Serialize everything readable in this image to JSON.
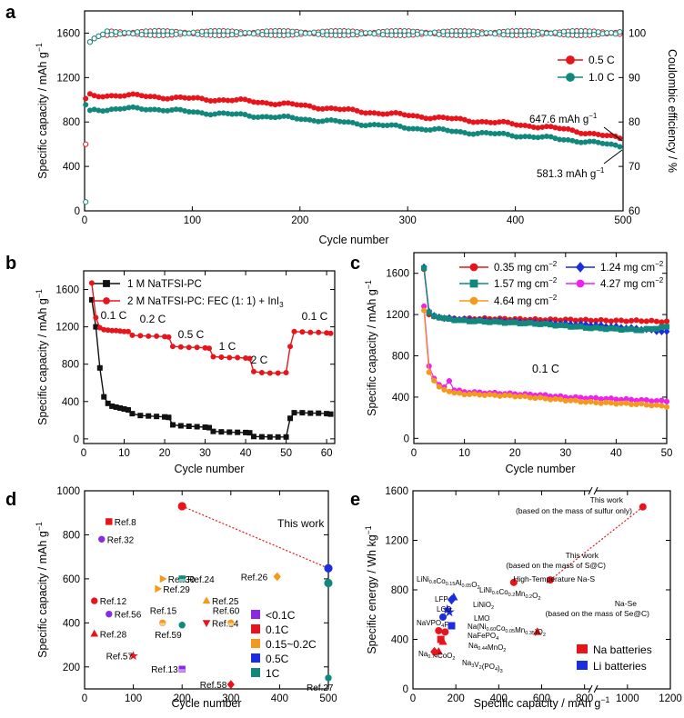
{
  "colors": {
    "red": "#e8141b",
    "teal": "#12887d",
    "blue": "#1c2ce0",
    "magenta": "#ee22ee",
    "orange": "#f39a1d",
    "purple": "#8a2be2",
    "black": "#111111"
  },
  "chart_data": [
    {
      "panel": "a",
      "type": "line",
      "xlabel": "Cycle number",
      "ylabel": "Specific capacity / mAh g",
      "ylabel_sup": "−1",
      "y2label": "Coulombic efficiency / %",
      "xlim": [
        0,
        500
      ],
      "ylim": [
        0,
        1800
      ],
      "y2lim": [
        60,
        105
      ],
      "xticks": [
        0,
        100,
        200,
        300,
        400,
        500
      ],
      "yticks": [
        0,
        400,
        800,
        1200,
        1600
      ],
      "y2ticks": [
        60,
        70,
        80,
        90,
        100
      ],
      "series": [
        {
          "name": "0.5 C",
          "color": "red",
          "capacity": {
            "x": [
              1,
              2,
              3,
              5,
              10,
              20,
              40,
              60,
              100,
              150,
              200,
              250,
              300,
              350,
              400,
              450,
              480,
              500
            ],
            "y": [
              1000,
              650,
              1050,
              1040,
              1030,
              1040,
              1040,
              1030,
              1010,
              990,
              950,
              900,
              860,
              820,
              780,
              730,
              680,
              648
            ]
          },
          "efficiency": {
            "x": [
              1,
              2,
              3,
              5,
              10,
              20,
              50,
              100,
              200,
              300,
              400,
              500
            ],
            "y": [
              75,
              95,
              97,
              98,
              99,
              100,
              100,
              100,
              100,
              100,
              100,
              100
            ]
          }
        },
        {
          "name": "1.0 C",
          "color": "teal",
          "capacity": {
            "x": [
              1,
              3,
              5,
              10,
              20,
              40,
              60,
              100,
              150,
              200,
              250,
              300,
              350,
              400,
              450,
              500
            ],
            "y": [
              950,
              860,
              900,
              920,
              910,
              920,
              920,
              890,
              860,
              830,
              790,
              750,
              710,
              680,
              640,
              581
            ]
          },
          "efficiency": {
            "x": [
              1,
              3,
              5,
              10,
              20,
              50,
              100,
              200,
              300,
              400,
              500
            ],
            "y": [
              62,
              96,
              98,
              99,
              100,
              100,
              100,
              100,
              100,
              100,
              100
            ]
          }
        }
      ],
      "annotations": [
        {
          "text": "647.6 mAh g",
          "sup": "−1"
        },
        {
          "text": "581.3 mAh g",
          "sup": "−1"
        }
      ],
      "legend_position": "right"
    },
    {
      "panel": "b",
      "type": "line",
      "xlabel": "Cycle number",
      "ylabel": "Specific capacity / mAh g",
      "ylabel_sup": "−1",
      "xlim": [
        0,
        62
      ],
      "ylim": [
        -50,
        1800
      ],
      "xticks": [
        0,
        10,
        20,
        30,
        40,
        50,
        60
      ],
      "yticks": [
        0,
        400,
        800,
        1200,
        1600
      ],
      "series": [
        {
          "name": "1 M NaTFSI-PC",
          "color": "black",
          "x": [
            2,
            3,
            4,
            5,
            6,
            7,
            8,
            9,
            10,
            11,
            12,
            14,
            16,
            18,
            20,
            21,
            22,
            24,
            26,
            28,
            30,
            31,
            32,
            34,
            36,
            38,
            40,
            41,
            42,
            44,
            46,
            48,
            50,
            51,
            52,
            54,
            56,
            58,
            60,
            61
          ],
          "y": [
            1490,
            1200,
            760,
            450,
            380,
            350,
            340,
            330,
            320,
            310,
            270,
            250,
            245,
            240,
            235,
            230,
            150,
            140,
            135,
            130,
            125,
            120,
            80,
            75,
            72,
            70,
            68,
            65,
            25,
            22,
            20,
            20,
            20,
            220,
            280,
            280,
            275,
            275,
            270,
            265
          ]
        },
        {
          "name": "2 M NaTFSI-PC: FEC (1: 1) + InI",
          "sub": "3",
          "color": "red",
          "x": [
            2,
            3,
            4,
            5,
            6,
            7,
            8,
            9,
            10,
            11,
            12,
            14,
            16,
            18,
            20,
            21,
            22,
            24,
            26,
            28,
            30,
            31,
            32,
            34,
            36,
            38,
            40,
            41,
            42,
            44,
            46,
            48,
            50,
            51,
            52,
            54,
            56,
            58,
            60,
            61
          ],
          "y": [
            1670,
            1300,
            1190,
            1170,
            1165,
            1160,
            1160,
            1155,
            1150,
            1150,
            1110,
            1105,
            1100,
            1100,
            1095,
            1090,
            990,
            985,
            980,
            980,
            975,
            970,
            880,
            875,
            870,
            870,
            865,
            860,
            720,
            710,
            705,
            705,
            710,
            990,
            1150,
            1145,
            1140,
            1140,
            1135,
            1130
          ]
        }
      ],
      "annotations": [
        "0.1 C",
        "0.2 C",
        "0.5 C",
        "1 C",
        "2 C",
        "0.1 C"
      ],
      "legend_position": "top-left"
    },
    {
      "panel": "c",
      "type": "line",
      "xlabel": "Cycle number",
      "ylabel": "Specific capacity / mAh g",
      "ylabel_sup": "−1",
      "xlim": [
        0,
        50
      ],
      "ylim": [
        -50,
        1800
      ],
      "xticks": [
        0,
        10,
        20,
        30,
        40,
        50
      ],
      "yticks": [
        0,
        400,
        800,
        1200,
        1600
      ],
      "annotations": [
        "0.1 C"
      ],
      "series": [
        {
          "name": "0.35 mg cm",
          "sup": "−2",
          "color": "red",
          "marker": "circle",
          "x": [
            2,
            3,
            4,
            5,
            6,
            8,
            10,
            15,
            20,
            25,
            30,
            35,
            40,
            45,
            50
          ],
          "y": [
            1640,
            1200,
            1180,
            1170,
            1165,
            1160,
            1160,
            1160,
            1155,
            1150,
            1150,
            1145,
            1140,
            1140,
            1130
          ]
        },
        {
          "name": "1.24 mg cm",
          "sup": "−2",
          "color": "blue",
          "marker": "diamond",
          "x": [
            2,
            3,
            4,
            5,
            6,
            8,
            10,
            15,
            20,
            25,
            30,
            35,
            40,
            45,
            50
          ],
          "y": [
            1660,
            1230,
            1190,
            1175,
            1165,
            1160,
            1150,
            1140,
            1130,
            1120,
            1110,
            1100,
            1080,
            1060,
            1030
          ]
        },
        {
          "name": "1.57 mg cm",
          "sup": "−2",
          "color": "teal",
          "marker": "square",
          "x": [
            2,
            3,
            4,
            5,
            6,
            8,
            10,
            15,
            20,
            25,
            30,
            35,
            40,
            45,
            50
          ],
          "y": [
            1650,
            1220,
            1185,
            1170,
            1160,
            1150,
            1140,
            1130,
            1120,
            1110,
            1090,
            1070,
            1060,
            1050,
            1080
          ]
        },
        {
          "name": "4.27 mg cm",
          "sup": "−2",
          "color": "magenta",
          "marker": "circle",
          "x": [
            2,
            3,
            4,
            5,
            6,
            7,
            8,
            10,
            15,
            20,
            25,
            30,
            35,
            40,
            45,
            50
          ],
          "y": [
            1280,
            700,
            580,
            520,
            490,
            560,
            470,
            450,
            440,
            430,
            420,
            400,
            390,
            380,
            370,
            360
          ]
        },
        {
          "name": "4.64 mg cm",
          "sup": "−2",
          "color": "orange",
          "marker": "circle",
          "x": [
            2,
            3,
            4,
            5,
            6,
            7,
            8,
            10,
            15,
            20,
            25,
            30,
            35,
            40,
            45,
            50
          ],
          "y": [
            1240,
            640,
            560,
            500,
            470,
            460,
            440,
            430,
            420,
            410,
            390,
            370,
            350,
            340,
            330,
            310
          ]
        }
      ],
      "legend_position": "top"
    },
    {
      "panel": "d",
      "type": "scatter",
      "xlabel": "Cycle number",
      "ylabel": "Specific capacity / mAh g",
      "ylabel_sup": "−1",
      "xlim": [
        0,
        500
      ],
      "ylim": [
        100,
        1000
      ],
      "xticks": [
        0,
        100,
        200,
        300,
        400,
        500
      ],
      "yticks": [
        200,
        400,
        600,
        800,
        1000
      ],
      "title_annotation": "This work",
      "this_work": {
        "points": [
          {
            "x": 200,
            "y": 930,
            "color": "red"
          },
          {
            "x": 500,
            "y": 648,
            "color": "blue"
          },
          {
            "x": 500,
            "y": 581,
            "color": "teal"
          }
        ]
      },
      "points": [
        {
          "label": "Ref.8",
          "x": 50,
          "y": 860,
          "marker": "square",
          "color": "red"
        },
        {
          "label": "Ref.32",
          "x": 35,
          "y": 780,
          "marker": "circle",
          "color": "purple"
        },
        {
          "label": "Ref.30",
          "x": 160,
          "y": 600,
          "marker": "triangle-r",
          "color": "orange"
        },
        {
          "label": "Ref.29",
          "x": 150,
          "y": 555,
          "marker": "triangle-r",
          "color": "orange"
        },
        {
          "label": "Ref.24",
          "x": 200,
          "y": 600,
          "marker": "square-half",
          "color": "teal"
        },
        {
          "label": "Ref.26",
          "x": 395,
          "y": 610,
          "marker": "diamond-half",
          "color": "orange"
        },
        {
          "label": "Ref.12",
          "x": 20,
          "y": 500,
          "marker": "circle",
          "color": "red"
        },
        {
          "label": "Ref.25",
          "x": 250,
          "y": 500,
          "marker": "triangle",
          "color": "orange"
        },
        {
          "label": "Ref.56",
          "x": 50,
          "y": 440,
          "marker": "circle",
          "color": "purple"
        },
        {
          "label": "Ref.15",
          "x": 160,
          "y": 400,
          "marker": "circle-half",
          "color": "orange"
        },
        {
          "label": "Ref.59",
          "x": 200,
          "y": 390,
          "marker": "circle",
          "color": "teal"
        },
        {
          "label": "Ref.14",
          "x": 250,
          "y": 400,
          "marker": "triangle-down",
          "color": "red"
        },
        {
          "label": "Ref.60",
          "x": 300,
          "y": 400,
          "marker": "circle-half",
          "color": "orange"
        },
        {
          "label": "Ref.28",
          "x": 20,
          "y": 350,
          "marker": "triangle",
          "color": "red"
        },
        {
          "label": "Ref.57",
          "x": 100,
          "y": 250,
          "marker": "star",
          "color": "red"
        },
        {
          "label": "Ref.13",
          "x": 200,
          "y": 190,
          "marker": "square-half",
          "color": "purple"
        },
        {
          "label": "Ref.58",
          "x": 300,
          "y": 120,
          "marker": "diamond",
          "color": "red"
        },
        {
          "label": "Ref.27",
          "x": 500,
          "y": 150,
          "marker": "circle",
          "color": "teal"
        }
      ],
      "legend": [
        {
          "label": "<0.1C",
          "color": "purple"
        },
        {
          "label": "0.1C",
          "color": "red"
        },
        {
          "label": "0.15~0.2C",
          "color": "orange"
        },
        {
          "label": "0.5C",
          "color": "blue"
        },
        {
          "label": "1C",
          "color": "teal"
        }
      ],
      "legend_position": "bottom-right"
    },
    {
      "panel": "e",
      "type": "scatter",
      "xlabel": "Specific capacity / mAh g",
      "xlabel_sup": "−1",
      "ylabel": "Specific energy / Wh kg",
      "ylabel_sup": "−1",
      "xlim": [
        0,
        1200
      ],
      "ylim": [
        0,
        1600
      ],
      "xticks": [
        0,
        200,
        400,
        600,
        800,
        1000,
        1200
      ],
      "yticks": [
        0,
        400,
        800,
        1200,
        1600
      ],
      "axis_break": true,
      "points": [
        {
          "label": "This work",
          "sub_label": "(based on the mass of sulfur only)",
          "x": 1072,
          "y": 1470,
          "color": "red",
          "marker": "circle"
        },
        {
          "label": "This work",
          "sub_label": "(based on the mass of S@C)",
          "x": 640,
          "y": 880,
          "color": "red",
          "marker": "circle"
        },
        {
          "label": "High-Temperature Na-S",
          "x": 470,
          "y": 860,
          "color": "red",
          "marker": "circle"
        },
        {
          "label": "Na-Se",
          "sub_label": "(based on the mass of Se@C)",
          "x": 580,
          "y": 460,
          "color": "red",
          "marker": "triangle"
        },
        {
          "label": "LiNi0.8Co0.15Al0.05O2",
          "x": 190,
          "y": 740,
          "color": "blue",
          "marker": "triangle"
        },
        {
          "label": "LiNi0.6Co0.2Mn0.2O2",
          "x": 180,
          "y": 720,
          "color": "blue",
          "marker": "diamond"
        },
        {
          "label": "LFP",
          "x": 160,
          "y": 640,
          "color": "blue",
          "marker": "star"
        },
        {
          "label": "LCO",
          "x": 140,
          "y": 580,
          "color": "blue",
          "marker": "circle"
        },
        {
          "label": "LiNiO2",
          "x": 170,
          "y": 620,
          "color": "blue",
          "marker": "star"
        },
        {
          "label": "LMO",
          "x": 180,
          "y": 510,
          "color": "blue",
          "marker": "square"
        },
        {
          "label": "NaVPO4F",
          "x": 120,
          "y": 470,
          "color": "red",
          "marker": "circle"
        },
        {
          "label": "Na(Ni0.60Co0.05Mn0.35)O2",
          "x": 150,
          "y": 460,
          "color": "red",
          "marker": "circle"
        },
        {
          "label": "NaFePO4",
          "x": 130,
          "y": 400,
          "color": "red",
          "marker": "square"
        },
        {
          "label": "Na0.44MnO2",
          "x": 140,
          "y": 380,
          "color": "red",
          "marker": "triangle"
        },
        {
          "label": "Na0.74CoO2",
          "x": 100,
          "y": 300,
          "color": "red",
          "marker": "diamond"
        },
        {
          "label": "Na3V2(PO4)3",
          "x": 120,
          "y": 300,
          "color": "red",
          "marker": "triangle"
        }
      ],
      "legend": [
        {
          "label": "Na batteries",
          "color": "red"
        },
        {
          "label": "Li batteries",
          "color": "blue"
        }
      ],
      "legend_position": "bottom-right"
    }
  ],
  "panel_labels": [
    "a",
    "b",
    "c",
    "d",
    "e"
  ]
}
